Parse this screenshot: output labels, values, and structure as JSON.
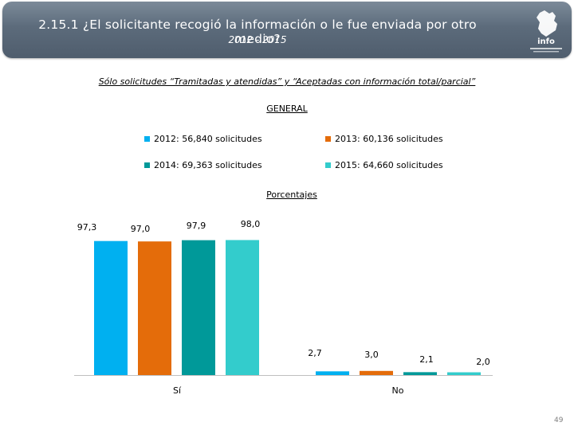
{
  "header": {
    "title": "2.15.1 ¿El solicitante recogió la información o le fue enviada por otro medio?",
    "subtitle": "2012 - 2015",
    "logo_text": "info"
  },
  "note": "Sólo solicitudes “Tramitadas y atendidas” y “Aceptadas con información total/parcial”",
  "section_label": "GENERAL",
  "legend": [
    {
      "label": "2012: 56,840 solicitudes",
      "color": "#00b0f0"
    },
    {
      "label": "2013: 60,136 solicitudes",
      "color": "#e46c0a"
    },
    {
      "label": "2014: 69,363 solicitudes",
      "color": "#009999"
    },
    {
      "label": "2015: 64,660 solicitudes",
      "color": "#33cccc"
    }
  ],
  "percent_label": "Porcentajes",
  "page_number": "49",
  "chart_data": {
    "type": "bar",
    "title": "GENERAL",
    "ylabel": "Porcentajes",
    "categories": [
      "Sí",
      "No"
    ],
    "series": [
      {
        "name": "2012: 56,840 solicitudes",
        "color": "#00b0f0",
        "values": [
          97.3,
          2.7
        ],
        "labels": [
          "97,3",
          "2,7"
        ]
      },
      {
        "name": "2013: 60,136 solicitudes",
        "color": "#e46c0a",
        "values": [
          97.0,
          3.0
        ],
        "labels": [
          "97,0",
          "3,0"
        ]
      },
      {
        "name": "2014: 69,363 solicitudes",
        "color": "#009999",
        "values": [
          97.9,
          2.1
        ],
        "labels": [
          "97,9",
          "2,1"
        ]
      },
      {
        "name": "2015: 64,660 solicitudes",
        "color": "#33cccc",
        "values": [
          98.0,
          2.0
        ],
        "labels": [
          "98,0",
          "2,0"
        ]
      }
    ],
    "ylim": [
      0,
      100
    ],
    "grid": false
  }
}
